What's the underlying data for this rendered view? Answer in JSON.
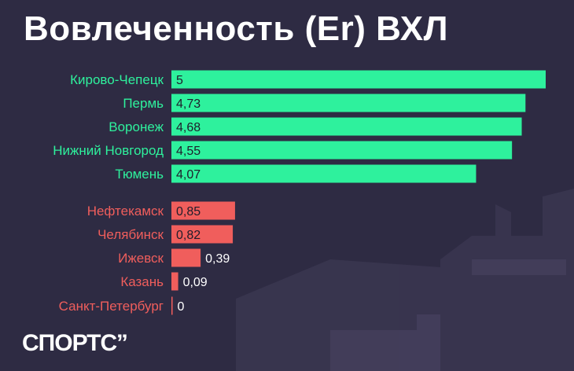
{
  "title": "Вовлеченность (Er) ВХЛ",
  "logo": "СПОРТС’’",
  "colors": {
    "background": "#2e2b43",
    "top_bar": "#2ef19d",
    "top_label": "#2ef19d",
    "bottom_bar": "#f05e5c",
    "bottom_label": "#f05e5c",
    "value_on_bar": "#1f1d2b",
    "value_outside": "#ffffff"
  },
  "chart_data": {
    "type": "bar",
    "orientation": "horizontal",
    "title": "Вовлеченность (Er) ВХЛ",
    "xlim": [
      0,
      5
    ],
    "groups": [
      {
        "name": "top",
        "color": "#2ef19d",
        "categories": [
          "Кирово-Чепецк",
          "Пермь",
          "Воронеж",
          "Нижний Новгород",
          "Тюмень"
        ],
        "values": [
          5,
          4.73,
          4.68,
          4.55,
          4.07
        ],
        "labels": [
          "5",
          "4,73",
          "4,68",
          "4,55",
          "4,07"
        ]
      },
      {
        "name": "bottom",
        "color": "#f05e5c",
        "categories": [
          "Нефтекамск",
          "Челябинск",
          "Ижевск",
          "Казань",
          "Санкт-Петербург"
        ],
        "values": [
          0.85,
          0.82,
          0.39,
          0.09,
          0
        ],
        "labels": [
          "0,85",
          "0,82",
          "0,39",
          "0,09",
          "0"
        ]
      }
    ]
  }
}
